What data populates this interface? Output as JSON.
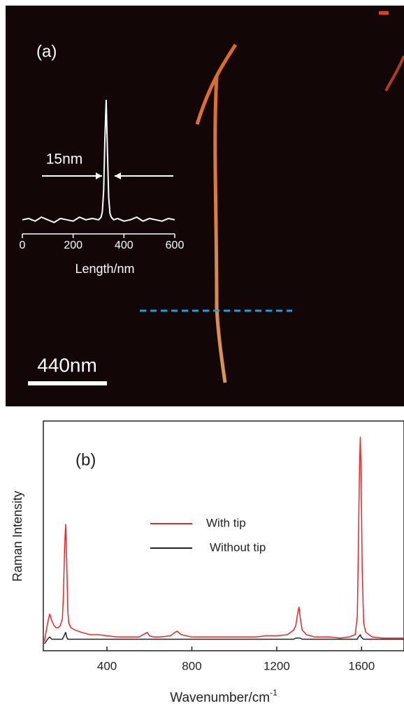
{
  "chart_data": [
    {
      "type": "line",
      "panel_label": "(a)",
      "scale_bar_label": "440nm",
      "annotation": "15nm",
      "x_label": "Length/nm",
      "x": [
        0,
        25,
        50,
        75,
        100,
        125,
        150,
        175,
        200,
        225,
        250,
        275,
        300,
        310,
        315,
        320,
        325,
        330,
        335,
        340,
        345,
        350,
        360,
        375,
        400,
        425,
        450,
        475,
        500,
        525,
        550,
        575,
        600
      ],
      "series": [
        {
          "color": "#ffffff",
          "values": [
            0.08,
            0.09,
            0.07,
            0.1,
            0.08,
            0.06,
            0.09,
            0.08,
            0.07,
            0.1,
            0.08,
            0.09,
            0.08,
            0.1,
            0.14,
            0.3,
            0.7,
            0.98,
            0.6,
            0.25,
            0.13,
            0.1,
            0.08,
            0.09,
            0.07,
            0.08,
            0.1,
            0.07,
            0.09,
            0.08,
            0.07,
            0.09,
            0.08
          ]
        }
      ],
      "xlim": [
        0,
        600
      ],
      "ylim": [
        0,
        1
      ],
      "xticks": [
        0,
        200,
        400,
        600
      ]
    },
    {
      "type": "line",
      "panel_label": "(b)",
      "x_label": "Wavenumber/cm",
      "x_label_sup": "-1",
      "y_label": "Raman Intensity",
      "x": [
        105,
        120,
        130,
        140,
        150,
        160,
        170,
        180,
        190,
        195,
        200,
        205,
        210,
        215,
        220,
        230,
        250,
        280,
        320,
        360,
        400,
        450,
        500,
        550,
        590,
        600,
        620,
        650,
        700,
        720,
        730,
        750,
        800,
        850,
        900,
        950,
        1000,
        1050,
        1100,
        1150,
        1200,
        1250,
        1280,
        1290,
        1300,
        1305,
        1310,
        1320,
        1340,
        1380,
        1450,
        1500,
        1540,
        1570,
        1580,
        1585,
        1590,
        1594,
        1598,
        1603,
        1610,
        1620,
        1650,
        1700,
        1750,
        1800
      ],
      "series": [
        {
          "name": "With tip",
          "color": "#e8262b",
          "values": [
            0.04,
            0.12,
            0.16,
            0.13,
            0.11,
            0.1,
            0.1,
            0.11,
            0.14,
            0.25,
            0.45,
            0.55,
            0.4,
            0.18,
            0.12,
            0.1,
            0.09,
            0.08,
            0.07,
            0.07,
            0.065,
            0.06,
            0.06,
            0.06,
            0.08,
            0.065,
            0.06,
            0.06,
            0.065,
            0.08,
            0.085,
            0.07,
            0.06,
            0.06,
            0.06,
            0.06,
            0.06,
            0.06,
            0.06,
            0.065,
            0.065,
            0.07,
            0.09,
            0.11,
            0.17,
            0.19,
            0.15,
            0.09,
            0.07,
            0.06,
            0.06,
            0.055,
            0.06,
            0.07,
            0.15,
            0.45,
            0.8,
            0.93,
            0.75,
            0.35,
            0.12,
            0.08,
            0.06,
            0.055,
            0.055,
            0.055
          ]
        },
        {
          "name": "Without tip",
          "color": "#222222",
          "values": [
            0.03,
            0.05,
            0.06,
            0.05,
            0.05,
            0.05,
            0.05,
            0.05,
            0.05,
            0.06,
            0.07,
            0.08,
            0.06,
            0.05,
            0.05,
            0.05,
            0.05,
            0.05,
            0.05,
            0.05,
            0.05,
            0.05,
            0.05,
            0.05,
            0.05,
            0.05,
            0.05,
            0.05,
            0.05,
            0.05,
            0.05,
            0.05,
            0.05,
            0.05,
            0.05,
            0.05,
            0.05,
            0.05,
            0.05,
            0.05,
            0.05,
            0.05,
            0.05,
            0.055,
            0.055,
            0.055,
            0.055,
            0.05,
            0.05,
            0.05,
            0.05,
            0.05,
            0.05,
            0.05,
            0.05,
            0.06,
            0.065,
            0.07,
            0.06,
            0.055,
            0.05,
            0.05,
            0.05,
            0.05,
            0.05,
            0.05
          ]
        }
      ],
      "xlim": [
        100,
        1800
      ],
      "ylim": [
        0,
        1
      ],
      "xticks": [
        400,
        800,
        1200,
        1600
      ]
    }
  ]
}
